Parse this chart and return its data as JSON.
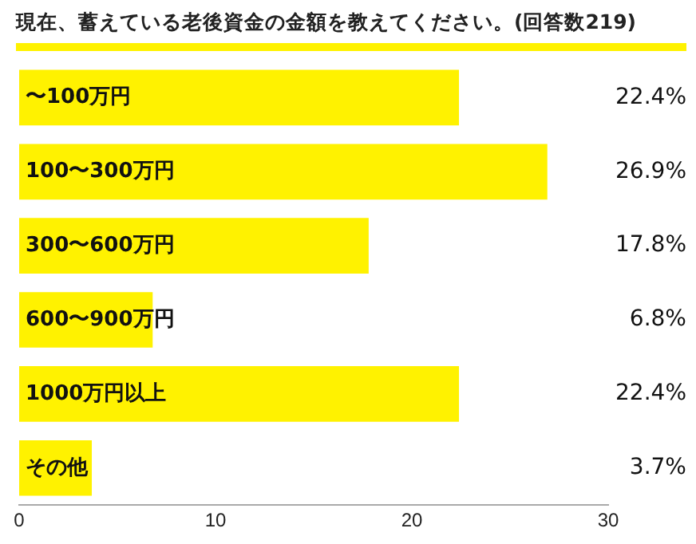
{
  "chart_data": {
    "type": "bar",
    "orientation": "horizontal",
    "title": "現在、蓄えている老後資金の金額を教えてください。(回答数219)",
    "categories": [
      "〜100万円",
      "100〜300万円",
      "300〜600万円",
      "600〜900万円",
      "1000万円以上",
      "その他"
    ],
    "values": [
      22.4,
      26.9,
      17.8,
      6.8,
      22.4,
      3.7
    ],
    "value_labels": [
      "22.4%",
      "26.9%",
      "17.8%",
      "6.8%",
      "22.4%",
      "3.7%"
    ],
    "color": "#fff200",
    "xlim": [
      0,
      30
    ],
    "xticks": [
      0,
      10,
      20,
      30
    ],
    "grid": false,
    "legend": false
  }
}
